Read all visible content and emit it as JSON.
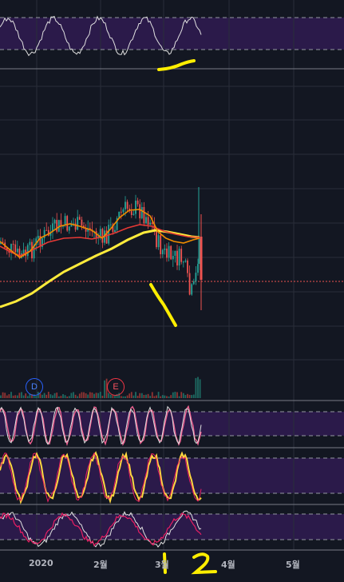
{
  "x_axis": {
    "labels": [
      "2020",
      "2월",
      "3월",
      "4월",
      "5월"
    ]
  },
  "event_markers": [
    {
      "label": "D"
    },
    {
      "label": "E"
    }
  ],
  "colors": {
    "background": "#131722",
    "grid": "#2a2e39",
    "pane_band": "#2b1a4a",
    "pane_divider": "#787b86",
    "candle_up": "#26a69a",
    "candle_down": "#ef5350",
    "ma_orange": "#f08c00",
    "ma_red": "#e53935",
    "ma_yellow": "#ffeb3b",
    "indicator_white": "#e0e0e0",
    "indicator_pink": "#f06292",
    "indicator_yellow": "#ffd740",
    "indicator_red": "#e91e63",
    "annotation": "#ffee00"
  },
  "annotations": {
    "handwritten_text": "1 2"
  }
}
